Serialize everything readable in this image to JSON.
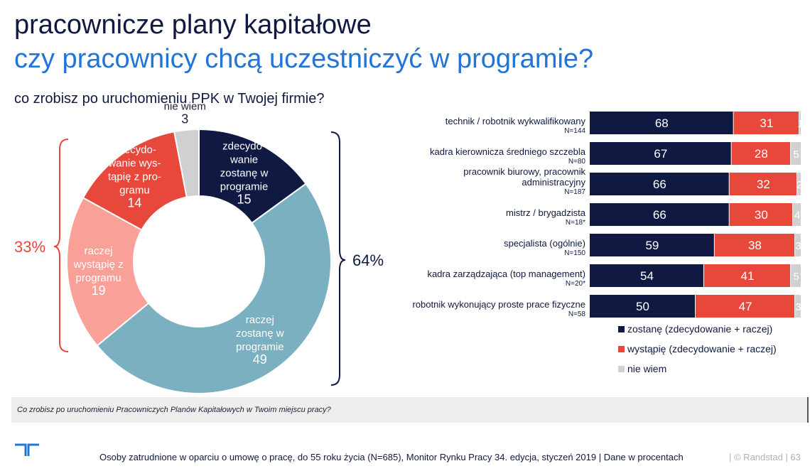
{
  "header": {
    "title": "pracownicze plany kapitałowe",
    "subtitle": "czy pracownicy chcą uczestniczyć w programie?",
    "question": "co zrobisz po uruchomieniu PPK w Twojej firmie?"
  },
  "donut": {
    "left_bracket_label": "33%",
    "right_bracket_label": "64%"
  },
  "footer": {
    "footnote": "Co zrobisz po uruchomieniu Pracowniczych Planów Kapitałowych w Twoim miejscu pracy?",
    "source": "Osoby zatrudnione w oparciu o umowę o pracę, do 55 roku życia (N=685), Monitor Rynku Pracy 34. edycja, styczeń 2019 | Dane w procentach",
    "copyright": "| © Randstad | 63"
  },
  "colors": {
    "navy": "#0f1941",
    "blue": "#2175d9",
    "red": "#e8473b",
    "salmon": "#f9a199",
    "teal": "#7bb0c1",
    "grey": "#d0d0d0"
  },
  "chart_data": [
    {
      "type": "pie",
      "variant": "donut",
      "slices": [
        {
          "label_lines": [
            "zdecydo-",
            "wanie",
            "zostanę w",
            "programie"
          ],
          "value": 15,
          "color": "#0f1941"
        },
        {
          "label_lines": [
            "raczej",
            "zostanę w",
            "programie"
          ],
          "value": 49,
          "color": "#7bb0c1"
        },
        {
          "label_lines": [
            "raczej",
            "wystąpię z",
            "programu"
          ],
          "value": 19,
          "color": "#f9a199"
        },
        {
          "label_lines": [
            "zdecydo-",
            "wanie wys-",
            "tąpię z pro-",
            "gramu"
          ],
          "value": 14,
          "color": "#e8473b"
        },
        {
          "label_lines": [
            "nie wiem"
          ],
          "value": 3,
          "color": "#d0d0d0"
        }
      ]
    },
    {
      "type": "bar",
      "orientation": "horizontal",
      "stacked": true,
      "categories": [
        {
          "label_lines": [
            "technik / robotnik wykwalifikowany"
          ],
          "n": "N=144"
        },
        {
          "label_lines": [
            "kadra kierownicza średniego szczebla"
          ],
          "n": "N=80"
        },
        {
          "label_lines": [
            "pracownik biurowy, pracownik",
            "administracyjny"
          ],
          "n": "N=187"
        },
        {
          "label_lines": [
            "mistrz / brygadzista"
          ],
          "n": "N=18*"
        },
        {
          "label_lines": [
            "specjalista (ogólnie)"
          ],
          "n": "N=150"
        },
        {
          "label_lines": [
            "kadra zarządzająca (top management)"
          ],
          "n": "N=20*"
        },
        {
          "label_lines": [
            "robotnik wykonujący proste prace fizyczne"
          ],
          "n": "N=58"
        }
      ],
      "series": [
        {
          "name": "zostanę (zdecydowanie + raczej)",
          "color": "#0f1941",
          "values": [
            68,
            67,
            66,
            66,
            59,
            54,
            50
          ]
        },
        {
          "name": "wystąpię (zdecydowanie + raczej)",
          "color": "#e8473b",
          "values": [
            31,
            28,
            32,
            30,
            38,
            41,
            47
          ]
        },
        {
          "name": "nie wiem",
          "color": "#d0d0d0",
          "values": [
            1,
            5,
            2,
            4,
            3,
            5,
            3
          ]
        }
      ],
      "xlim": [
        0,
        100
      ],
      "legend_position": "bottom-right"
    }
  ]
}
